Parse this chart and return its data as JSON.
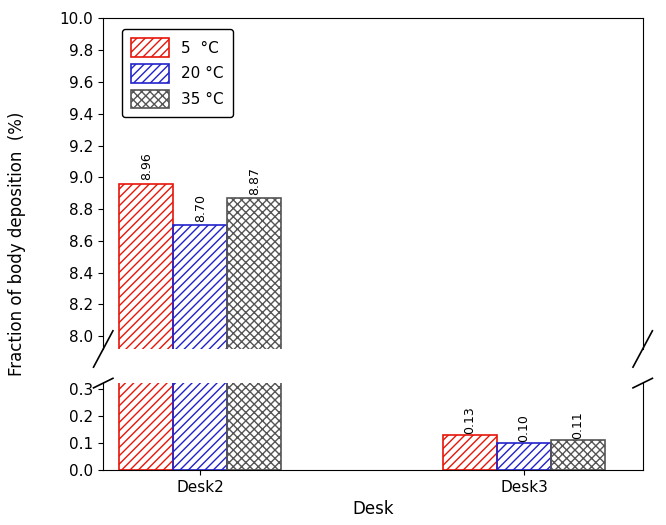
{
  "categories": [
    "Desk2",
    "Desk3"
  ],
  "series": [
    {
      "label": "5  °C",
      "color": "#e8150a",
      "hatch": "////",
      "values": [
        8.96,
        0.13
      ]
    },
    {
      "label": "20 °C",
      "color": "#2222cc",
      "hatch": "////",
      "values": [
        8.7,
        0.1
      ]
    },
    {
      "label": "35 °C",
      "color": "#555555",
      "hatch": "xxxx",
      "values": [
        8.87,
        0.11
      ]
    }
  ],
  "xlabel": "Desk",
  "ylabel": "Fraction of body deposition  (%)",
  "ylim_lower": [
    0.0,
    0.32
  ],
  "ylim_upper": [
    7.92,
    10.0
  ],
  "yticks_lower": [
    0.0,
    0.1,
    0.2,
    0.3
  ],
  "yticks_upper": [
    8.0,
    8.2,
    8.4,
    8.6,
    8.8,
    9.0,
    9.2,
    9.4,
    9.6,
    9.8,
    10.0
  ],
  "bar_width": 0.25,
  "group_positions": [
    1.0,
    2.5
  ],
  "value_labels_fontsize": 9,
  "axis_fontsize": 12,
  "tick_fontsize": 11,
  "legend_fontsize": 11
}
